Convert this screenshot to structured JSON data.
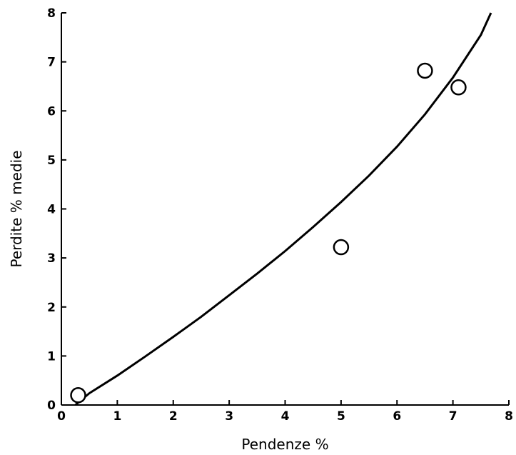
{
  "chart_data": {
    "type": "scatter",
    "title": "",
    "xlabel": "Pendenze %",
    "ylabel": "Perdite % medie",
    "xlim": [
      0,
      8
    ],
    "ylim": [
      0,
      8
    ],
    "x_ticks": [
      "0",
      "1",
      "2",
      "3",
      "4",
      "5",
      "6",
      "7",
      "8"
    ],
    "y_ticks": [
      "0",
      "1",
      "2",
      "3",
      "4",
      "5",
      "6",
      "7",
      "8"
    ],
    "grid": false,
    "legend": "none",
    "series": [
      {
        "kind": "points",
        "marker": "open-circle",
        "x": [
          0.3,
          5.0,
          6.5,
          7.1
        ],
        "y": [
          0.2,
          3.22,
          6.82,
          6.48
        ]
      },
      {
        "kind": "line",
        "x": [
          0.25,
          0.5,
          1.0,
          1.5,
          2.0,
          2.5,
          3.0,
          3.5,
          4.0,
          4.5,
          5.0,
          5.5,
          6.0,
          6.5,
          7.0,
          7.5,
          7.68
        ],
        "y": [
          0.0,
          0.24,
          0.6,
          0.99,
          1.39,
          1.8,
          2.24,
          2.68,
          3.14,
          3.63,
          4.14,
          4.68,
          5.27,
          5.93,
          6.68,
          7.55,
          8.0
        ]
      }
    ]
  },
  "colors": {
    "axis": "#000000",
    "curve": "#000000",
    "marker_fill": "#ffffff",
    "background": "#ffffff"
  }
}
